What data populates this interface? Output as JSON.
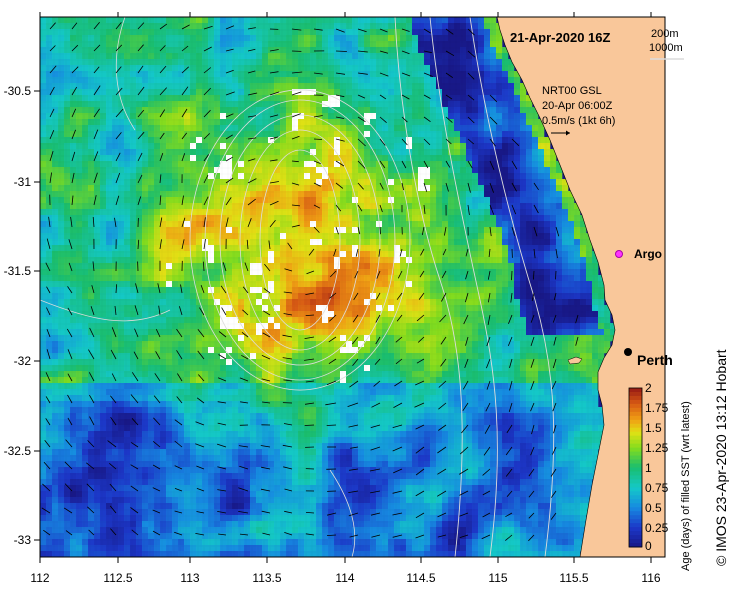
{
  "map": {
    "date_label": "21-Apr-2020 16Z",
    "isobath_legend": [
      "200m",
      "1000m"
    ],
    "current_info": [
      "NRT00 GSL",
      "20-Apr 06:00Z",
      "0.5m/s (1kt 6h)"
    ],
    "argo_label": "Argo",
    "city_label": "Perth",
    "lon_ticks": [
      "112",
      "112.5",
      "113",
      "113.5",
      "114",
      "114.5",
      "115",
      "115.5",
      "116"
    ],
    "lat_ticks": [
      "-30.5",
      "-31",
      "-31.5",
      "-32",
      "-32.5",
      "-33"
    ],
    "lon_range": [
      112,
      116
    ],
    "lat_range": [
      -33.1,
      -30.1
    ],
    "land_color": "#f9c79a",
    "ocean_deep_color": "#1a1a8c",
    "isobath_color": "#dcdcdc"
  },
  "colorbar": {
    "title": "Age (days) of filled SST (wrt latest)",
    "ticks": [
      "2",
      "1.75",
      "1.5",
      "1.25",
      "1",
      "0.75",
      "0.5",
      "0.25",
      "0"
    ],
    "range": [
      0,
      2
    ]
  },
  "credit": "© IMOS 23-Apr-2020 13:12 Hobart"
}
